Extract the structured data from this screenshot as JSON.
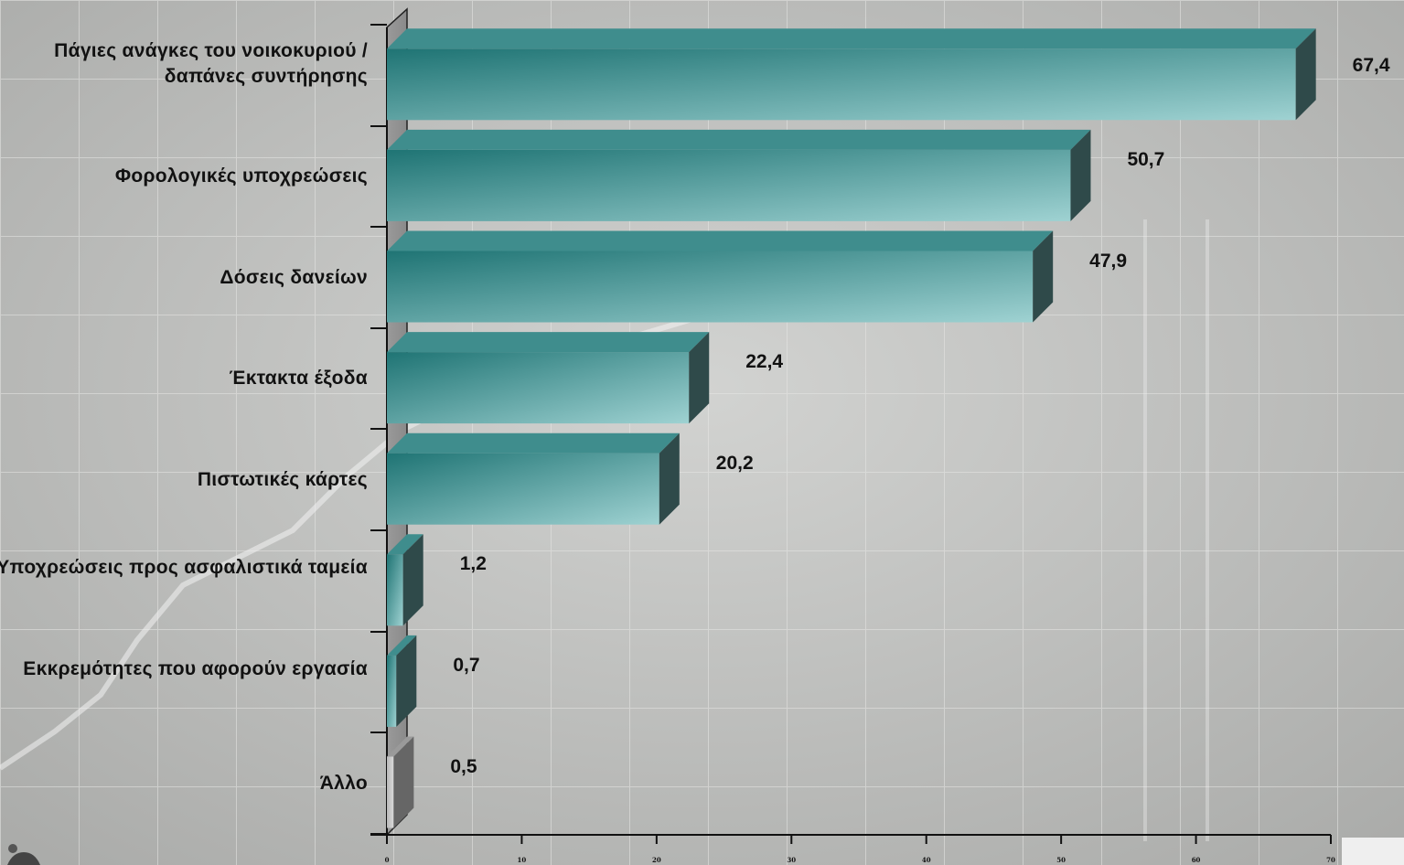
{
  "chart_data": {
    "type": "bar",
    "orientation": "horizontal",
    "categories": [
      "Πάγιες ανάγκες του νοικοκυριού / δαπάνες συντήρησης",
      "Φορολογικές υποχρεώσεις",
      "Δόσεις δανείων",
      "Έκτακτα έξοδα",
      "Πιστωτικές κάρτες",
      "Υποχρεώσεις προς ασφαλιστικά ταμεία",
      "Εκκρεμότητες που αφορούν εργασία",
      "Άλλο"
    ],
    "values": [
      67.4,
      50.7,
      47.9,
      22.4,
      20.2,
      1.2,
      0.7,
      0.5
    ],
    "value_labels": [
      "67,4",
      "50,7",
      "47,9",
      "22,4",
      "20,2",
      "1,2",
      "0,7",
      "0,5"
    ],
    "xlim": [
      0,
      70
    ],
    "xticks": [
      "0",
      "10",
      "20",
      "30",
      "40",
      "50",
      "60",
      "70"
    ],
    "title": "",
    "xlabel": "",
    "ylabel": "",
    "grid": false,
    "legend": "none",
    "colors": {
      "bar_dark": "#1f7474",
      "bar_light": "#9fd2d2",
      "bar_side": "#2f4a4a",
      "bar_top": "#3f8d8d",
      "other_bar": "#d9d9d9",
      "other_side": "#666666",
      "wall": "#8a8a8a"
    }
  }
}
